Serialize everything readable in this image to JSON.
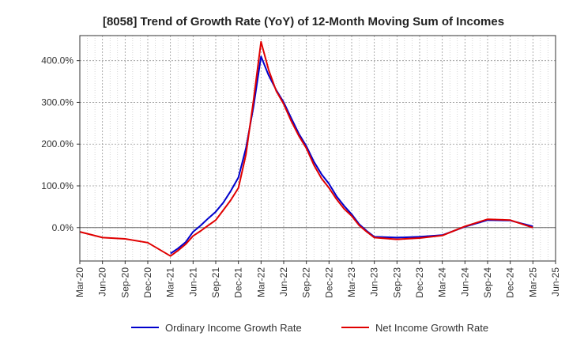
{
  "chart_data": {
    "type": "line",
    "title": "[8058]  Trend of Growth Rate (YoY) of 12-Month Moving Sum of Incomes",
    "xlabel": "",
    "ylabel": "",
    "x_tick_labels": [
      "Mar-20",
      "Jun-20",
      "Sep-20",
      "Dec-20",
      "Mar-21",
      "Jun-21",
      "Sep-21",
      "Dec-21",
      "Mar-22",
      "Jun-22",
      "Sep-22",
      "Dec-22",
      "Mar-23",
      "Jun-23",
      "Sep-23",
      "Dec-23",
      "Mar-24",
      "Jun-24",
      "Sep-24",
      "Dec-24",
      "Mar-25",
      "Jun-25"
    ],
    "y_ticks": [
      0,
      100,
      200,
      300,
      400
    ],
    "y_tick_labels": [
      "0.0%",
      "100.0%",
      "200.0%",
      "300.0%",
      "400.0%"
    ],
    "ylim": [
      -80,
      460
    ],
    "grid": true,
    "legend_position": "bottom",
    "series": [
      {
        "name": "Ordinary Income Growth Rate",
        "color": "#0000cc",
        "points": [
          {
            "x": "Mar-21",
            "y": -62
          },
          {
            "x": "Apr-21",
            "y": -50
          },
          {
            "x": "May-21",
            "y": -35
          },
          {
            "x": "Jun-21",
            "y": -10
          },
          {
            "x": "Jul-21",
            "y": 5
          },
          {
            "x": "Aug-21",
            "y": 22
          },
          {
            "x": "Sep-21",
            "y": 38
          },
          {
            "x": "Oct-21",
            "y": 60
          },
          {
            "x": "Nov-21",
            "y": 88
          },
          {
            "x": "Dec-21",
            "y": 120
          },
          {
            "x": "Jan-22",
            "y": 190
          },
          {
            "x": "Feb-22",
            "y": 290
          },
          {
            "x": "Mar-22",
            "y": 410
          },
          {
            "x": "Apr-22",
            "y": 365
          },
          {
            "x": "May-22",
            "y": 330
          },
          {
            "x": "Jun-22",
            "y": 300
          },
          {
            "x": "Jul-22",
            "y": 262
          },
          {
            "x": "Aug-22",
            "y": 225
          },
          {
            "x": "Sep-22",
            "y": 195
          },
          {
            "x": "Oct-22",
            "y": 158
          },
          {
            "x": "Nov-22",
            "y": 128
          },
          {
            "x": "Dec-22",
            "y": 105
          },
          {
            "x": "Jan-23",
            "y": 75
          },
          {
            "x": "Feb-23",
            "y": 52
          },
          {
            "x": "Mar-23",
            "y": 32
          },
          {
            "x": "Apr-23",
            "y": 8
          },
          {
            "x": "May-23",
            "y": -8
          },
          {
            "x": "Jun-23",
            "y": -22
          },
          {
            "x": "Sep-23",
            "y": -24
          },
          {
            "x": "Dec-23",
            "y": -22
          },
          {
            "x": "Mar-24",
            "y": -18
          },
          {
            "x": "Jun-24",
            "y": 2
          },
          {
            "x": "Sep-24",
            "y": 18
          },
          {
            "x": "Dec-24",
            "y": 17
          },
          {
            "x": "Mar-25",
            "y": 3
          }
        ]
      },
      {
        "name": "Net Income Growth Rate",
        "color": "#e00000",
        "points": [
          {
            "x": "Mar-20",
            "y": -10
          },
          {
            "x": "Jun-20",
            "y": -24
          },
          {
            "x": "Sep-20",
            "y": -27
          },
          {
            "x": "Dec-20",
            "y": -36
          },
          {
            "x": "Mar-21",
            "y": -68
          },
          {
            "x": "Apr-21",
            "y": -55
          },
          {
            "x": "May-21",
            "y": -40
          },
          {
            "x": "Jun-21",
            "y": -20
          },
          {
            "x": "Jul-21",
            "y": -8
          },
          {
            "x": "Aug-21",
            "y": 5
          },
          {
            "x": "Sep-21",
            "y": 18
          },
          {
            "x": "Oct-21",
            "y": 42
          },
          {
            "x": "Nov-21",
            "y": 66
          },
          {
            "x": "Dec-21",
            "y": 95
          },
          {
            "x": "Jan-22",
            "y": 175
          },
          {
            "x": "Feb-22",
            "y": 305
          },
          {
            "x": "Mar-22",
            "y": 445
          },
          {
            "x": "Apr-22",
            "y": 378
          },
          {
            "x": "May-22",
            "y": 328
          },
          {
            "x": "Jun-22",
            "y": 296
          },
          {
            "x": "Jul-22",
            "y": 255
          },
          {
            "x": "Aug-22",
            "y": 220
          },
          {
            "x": "Sep-22",
            "y": 190
          },
          {
            "x": "Oct-22",
            "y": 150
          },
          {
            "x": "Nov-22",
            "y": 118
          },
          {
            "x": "Dec-22",
            "y": 95
          },
          {
            "x": "Jan-23",
            "y": 68
          },
          {
            "x": "Feb-23",
            "y": 45
          },
          {
            "x": "Mar-23",
            "y": 28
          },
          {
            "x": "Apr-23",
            "y": 5
          },
          {
            "x": "May-23",
            "y": -10
          },
          {
            "x": "Jun-23",
            "y": -24
          },
          {
            "x": "Sep-23",
            "y": -28
          },
          {
            "x": "Dec-23",
            "y": -25
          },
          {
            "x": "Mar-24",
            "y": -19
          },
          {
            "x": "Jun-24",
            "y": 3
          },
          {
            "x": "Sep-24",
            "y": 20
          },
          {
            "x": "Dec-24",
            "y": 18
          },
          {
            "x": "Mar-25",
            "y": 0
          }
        ]
      }
    ]
  }
}
